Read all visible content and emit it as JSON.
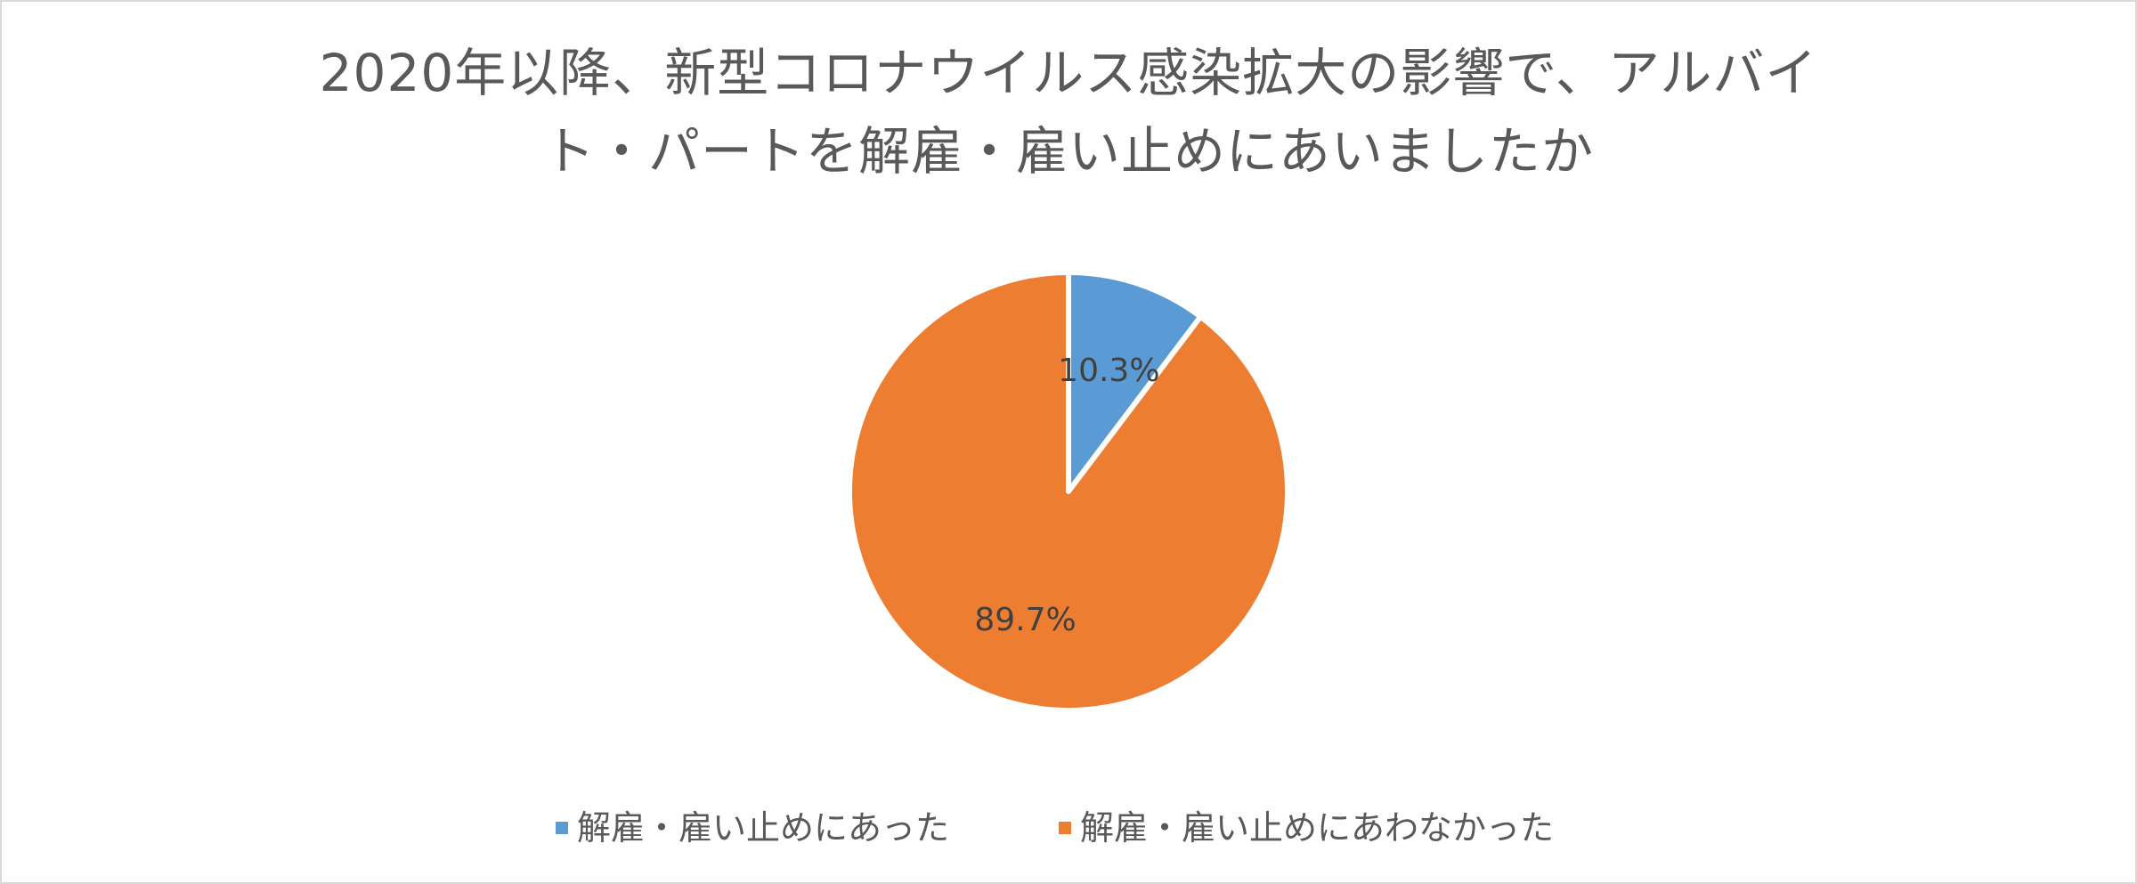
{
  "chart_data": {
    "type": "pie",
    "title": "2020年以降、新型コロナウイルス感染拡大の影響で、アルバイト・パートを解雇・雇い止めにあいましたか",
    "title_lines": [
      "2020年以降、新型コロナウイルス感染拡大の影響で、アルバイ",
      "ト・パートを解雇・雇い止めにあいましたか"
    ],
    "categories": [
      "解雇・雇い止めにあった",
      "解雇・雇い止めにあわなかった"
    ],
    "values": [
      10.3,
      89.7
    ],
    "data_labels": [
      "10.3%",
      "89.7%"
    ],
    "colors": [
      "#5b9bd5",
      "#ed7d31"
    ],
    "legend_position": "bottom",
    "start_angle_deg": 0,
    "direction": "clockwise"
  }
}
